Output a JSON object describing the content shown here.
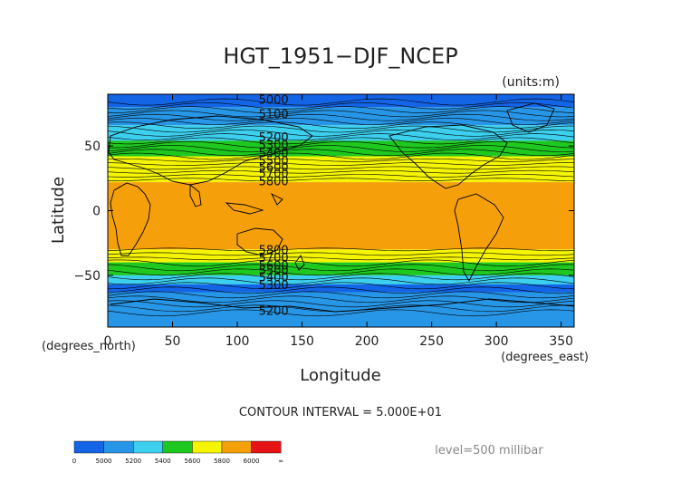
{
  "chart_data": {
    "type": "heatmap",
    "title": "HGT_1951−DJF_NCEP",
    "units_label": "(units:m)",
    "xlabel": "Longitude",
    "ylabel": "Latitude",
    "x_unit_label": "(degrees_east)",
    "y_unit_label": "(degrees_north)",
    "xlim": [
      0,
      360
    ],
    "ylim": [
      -90,
      90
    ],
    "x_ticks": [
      0,
      50,
      100,
      150,
      200,
      250,
      300,
      350
    ],
    "y_ticks": [
      50,
      0,
      -50
    ],
    "y_tick_labels": [
      "50",
      "0",
      "−50"
    ],
    "contour_interval_text": "CONTOUR INTERVAL = 5.000E+01",
    "level_text": "level=500 millibar",
    "contour_labels": [
      "5000",
      "5100",
      "5200",
      "5300",
      "5400",
      "5500",
      "5600",
      "5700",
      "5800",
      "5800",
      "5700",
      "5600",
      "5500",
      "5400",
      "5300",
      "5200"
    ],
    "contour_label_lats": [
      86,
      75,
      57,
      51,
      45,
      39,
      34,
      29,
      23,
      -30,
      -36,
      -42,
      -46,
      -51,
      -57,
      -77
    ],
    "bands": [
      {
        "lat_from": 90,
        "lat_to": 80,
        "color": "#1464e6"
      },
      {
        "lat_from": 80,
        "lat_to": 66,
        "color": "#2896e6"
      },
      {
        "lat_from": 66,
        "lat_to": 54,
        "color": "#3ccfee"
      },
      {
        "lat_from": 54,
        "lat_to": 42,
        "color": "#1ec81e"
      },
      {
        "lat_from": 42,
        "lat_to": 22,
        "color": "#f5f500"
      },
      {
        "lat_from": 22,
        "lat_to": -30,
        "color": "#f5a00a"
      },
      {
        "lat_from": -30,
        "lat_to": -40,
        "color": "#f5f500"
      },
      {
        "lat_from": -40,
        "lat_to": -50,
        "color": "#1ec81e"
      },
      {
        "lat_from": -50,
        "lat_to": -62,
        "color": "#3ccfee"
      },
      {
        "lat_from": -62,
        "lat_to": -90,
        "color": "#2896e6"
      },
      {
        "lat_from": -57,
        "lat_to": -63,
        "color": "#1464e6"
      }
    ],
    "colorbar": {
      "segments": [
        "#1464e6",
        "#2896e6",
        "#3ccfee",
        "#1ec81e",
        "#f5f500",
        "#f5a00a",
        "#e61414"
      ],
      "labels": [
        "0",
        "5000",
        "5200",
        "5400",
        "5600",
        "5800",
        "6000",
        "∞"
      ]
    },
    "grid": false,
    "legend_position": "bottom-left"
  }
}
